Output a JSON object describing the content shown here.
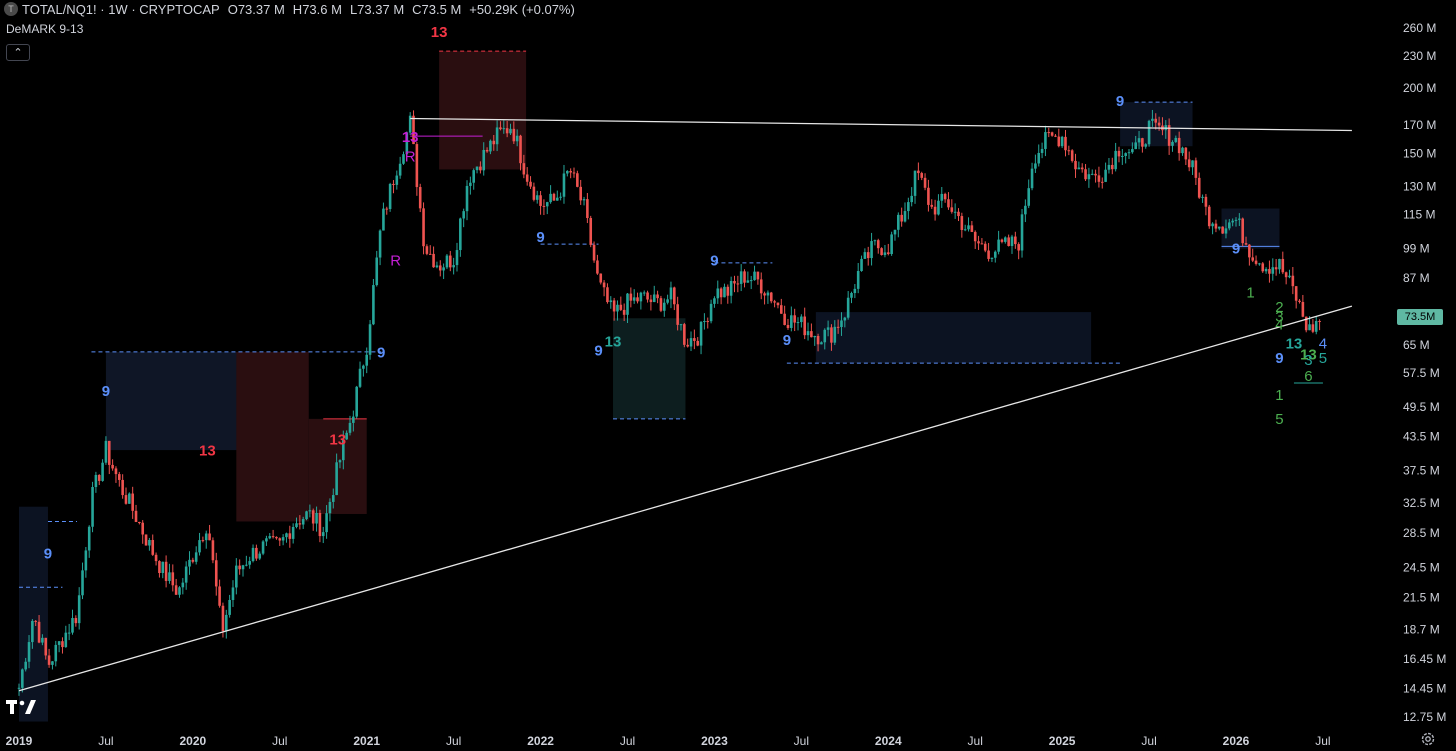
{
  "header": {
    "symbol_icon": "T",
    "title": "TOTAL/NQ1! · 1W · CRYPTOCAP",
    "ohlc": [
      {
        "key": "O",
        "value": "73.37 M"
      },
      {
        "key": "H",
        "value": "73.6 M"
      },
      {
        "key": "L",
        "value": "73.37 M"
      },
      {
        "key": "C",
        "value": "73.5 M"
      }
    ],
    "change": "+50.29K (+0.07%)"
  },
  "indicator": {
    "name": "DeMARK 9-13",
    "collapse_icon": "chevron-up-icon"
  },
  "price_label": "73.5M",
  "colors": {
    "up": "#26a69a",
    "down": "#ef5350",
    "trendline": "#e6e6e6",
    "tag": "#5fb8a3"
  },
  "chart_data": {
    "type": "candlestick",
    "scale": "log",
    "x": [
      "2019",
      "Jul",
      "2020",
      "Jul",
      "2021",
      "Jul",
      "2022",
      "Jul",
      "2023",
      "Jul",
      "2024",
      "Jul",
      "2025",
      "Jul",
      "2026",
      "Jul"
    ],
    "y_ticks": [
      "260 M",
      "230 M",
      "200 M",
      "170 M",
      "150 M",
      "130 M",
      "115 M",
      "99 M",
      "87 M",
      "73.5M",
      "65 M",
      "57.5 M",
      "49.5 M",
      "43.5 M",
      "37.5 M",
      "32.5 M",
      "28.5 M",
      "24.5 M",
      "21.5 M",
      "18.7 M",
      "16.45 M",
      "14.45 M",
      "12.75 M"
    ],
    "price_path": [
      [
        "2019-01",
        14.5
      ],
      [
        "2019-02",
        20
      ],
      [
        "2019-03",
        16
      ],
      [
        "2019-04",
        18
      ],
      [
        "2019-05",
        20
      ],
      [
        "2019-06",
        33
      ],
      [
        "2019-07",
        41
      ],
      [
        "2019-08",
        35
      ],
      [
        "2019-09",
        31
      ],
      [
        "2019-10",
        27
      ],
      [
        "2019-11",
        24
      ],
      [
        "2019-12",
        22
      ],
      [
        "2020-01",
        26
      ],
      [
        "2020-02",
        30
      ],
      [
        "2020-03",
        18.5
      ],
      [
        "2020-04",
        24
      ],
      [
        "2020-05",
        26
      ],
      [
        "2020-06",
        27
      ],
      [
        "2020-07",
        27
      ],
      [
        "2020-08",
        30
      ],
      [
        "2020-09",
        31
      ],
      [
        "2020-10",
        29
      ],
      [
        "2020-11",
        38
      ],
      [
        "2020-12",
        48
      ],
      [
        "2021-01",
        65
      ],
      [
        "2021-02",
        110
      ],
      [
        "2021-03",
        140
      ],
      [
        "2021-04",
        172
      ],
      [
        "2021-05",
        100
      ],
      [
        "2021-06",
        92
      ],
      [
        "2021-07",
        95
      ],
      [
        "2021-08",
        135
      ],
      [
        "2021-09",
        148
      ],
      [
        "2021-10",
        162
      ],
      [
        "2021-11",
        170
      ],
      [
        "2021-12",
        138
      ],
      [
        "2022-01",
        120
      ],
      [
        "2022-02",
        122
      ],
      [
        "2022-03",
        140
      ],
      [
        "2022-04",
        118
      ],
      [
        "2022-05",
        85
      ],
      [
        "2022-06",
        74
      ],
      [
        "2022-07",
        78
      ],
      [
        "2022-08",
        80
      ],
      [
        "2022-09",
        78
      ],
      [
        "2022-10",
        80
      ],
      [
        "2022-11",
        66
      ],
      [
        "2022-12",
        68
      ],
      [
        "2023-01",
        82
      ],
      [
        "2023-02",
        82
      ],
      [
        "2023-03",
        88
      ],
      [
        "2023-04",
        86
      ],
      [
        "2023-05",
        80
      ],
      [
        "2023-06",
        73
      ],
      [
        "2023-07",
        71
      ],
      [
        "2023-08",
        68
      ],
      [
        "2023-09",
        68
      ],
      [
        "2023-10",
        75
      ],
      [
        "2023-11",
        90
      ],
      [
        "2023-12",
        100
      ],
      [
        "2024-01",
        100
      ],
      [
        "2024-02",
        115
      ],
      [
        "2024-03",
        138
      ],
      [
        "2024-04",
        118
      ],
      [
        "2024-05",
        122
      ],
      [
        "2024-06",
        112
      ],
      [
        "2024-07",
        102
      ],
      [
        "2024-08",
        98
      ],
      [
        "2024-09",
        100
      ],
      [
        "2024-10",
        102
      ],
      [
        "2024-11",
        148
      ],
      [
        "2024-12",
        160
      ],
      [
        "2025-01",
        162
      ],
      [
        "2025-02",
        142
      ],
      [
        "2025-03",
        135
      ],
      [
        "2025-04",
        140
      ],
      [
        "2025-05",
        155
      ],
      [
        "2025-06",
        150
      ],
      [
        "2025-07",
        168
      ],
      [
        "2025-08",
        165
      ],
      [
        "2025-09",
        158
      ],
      [
        "2025-10",
        140
      ],
      [
        "2025-11",
        115
      ],
      [
        "2025-12",
        110
      ],
      [
        "2026-01",
        112
      ],
      [
        "2026-02",
        98
      ],
      [
        "2026-03",
        92
      ],
      [
        "2026-04",
        92
      ],
      [
        "2026-05",
        82
      ],
      [
        "2026-06",
        69
      ],
      [
        "2026-07",
        73.5
      ]
    ],
    "trendlines": [
      {
        "from": [
          "2019-01",
          14.3
        ],
        "to": [
          "2026-09",
          77
        ]
      },
      {
        "from": [
          "2021-04",
          175
        ],
        "to": [
          "2026-09",
          166
        ]
      }
    ],
    "annotations": [
      {
        "text": "13",
        "date": "2021-06",
        "price": 250,
        "color": "#f23645",
        "bold": true
      },
      {
        "text": "13",
        "date": "2021-04",
        "price": 158,
        "color": "#c41fd4",
        "bold": true
      },
      {
        "text": "R",
        "date": "2021-04",
        "price": 145,
        "color": "#c41fd4",
        "bold": false
      },
      {
        "text": "R",
        "date": "2021-03",
        "price": 92,
        "color": "#c41fd4",
        "bold": false
      },
      {
        "text": "13",
        "date": "2020-02",
        "price": 40,
        "color": "#f23645",
        "bold": true
      },
      {
        "text": "13",
        "date": "2020-11",
        "price": 42,
        "color": "#f23645",
        "bold": true
      },
      {
        "text": "9",
        "date": "2019-07",
        "price": 52,
        "color": "#5b8ff9",
        "bold": true
      },
      {
        "text": "9",
        "date": "2019-03",
        "price": 25.5,
        "color": "#5b8ff9",
        "bold": true
      },
      {
        "text": "9",
        "date": "2021-02",
        "price": 61.5,
        "color": "#5b8ff9",
        "bold": true
      },
      {
        "text": "9",
        "date": "2022-01",
        "price": 102,
        "color": "#5b8ff9",
        "bold": true
      },
      {
        "text": "9",
        "date": "2022-05",
        "price": 62,
        "color": "#5b8ff9",
        "bold": true
      },
      {
        "text": "13",
        "date": "2022-06",
        "price": 64.5,
        "color": "#26a69a",
        "bold": true
      },
      {
        "text": "9",
        "date": "2023-01",
        "price": 92,
        "color": "#5b8ff9",
        "bold": true
      },
      {
        "text": "9",
        "date": "2023-06",
        "price": 65,
        "color": "#5b8ff9",
        "bold": true
      },
      {
        "text": "9",
        "date": "2025-05",
        "price": 185,
        "color": "#5b8ff9",
        "bold": true
      },
      {
        "text": "9",
        "date": "2026-01",
        "price": 97,
        "color": "#5b8ff9",
        "bold": true
      },
      {
        "text": "1",
        "date": "2026-02",
        "price": 80,
        "color": "#4caf50",
        "bold": false
      },
      {
        "text": "2",
        "date": "2026-04",
        "price": 75,
        "color": "#4caf50",
        "bold": false
      },
      {
        "text": "3",
        "date": "2026-04",
        "price": 72,
        "color": "#4caf50",
        "bold": false
      },
      {
        "text": "4",
        "date": "2026-04",
        "price": 69.5,
        "color": "#4caf50",
        "bold": false
      },
      {
        "text": "13",
        "date": "2026-05",
        "price": 64,
        "color": "#26a69a",
        "bold": true
      },
      {
        "text": "13",
        "date": "2026-06",
        "price": 61,
        "color": "#4caf50",
        "bold": true
      },
      {
        "text": "9",
        "date": "2026-04",
        "price": 60,
        "color": "#5b8ff9",
        "bold": true
      },
      {
        "text": "3",
        "date": "2026-06",
        "price": 59.5,
        "color": "#26a69a",
        "bold": false
      },
      {
        "text": "4",
        "date": "2026-07",
        "price": 64,
        "color": "#5b8ff9",
        "bold": false
      },
      {
        "text": "5",
        "date": "2026-07",
        "price": 60,
        "color": "#26a69a",
        "bold": false
      },
      {
        "text": "6",
        "date": "2026-06",
        "price": 55.5,
        "color": "#4caf50",
        "bold": false
      },
      {
        "text": "1",
        "date": "2026-04",
        "price": 51,
        "color": "#4caf50",
        "bold": false
      },
      {
        "text": "5",
        "date": "2026-04",
        "price": 46,
        "color": "#4caf50",
        "bold": false
      }
    ],
    "zones": [
      {
        "from": "2019-07",
        "to": "2020-06",
        "low": 41,
        "high": 63,
        "color": "#0f1626"
      },
      {
        "from": "2020-04",
        "to": "2020-09",
        "low": 30,
        "high": 63,
        "color": "#2a0e10"
      },
      {
        "from": "2020-09",
        "to": "2021-01",
        "low": 31,
        "high": 47,
        "color": "#2a0e10"
      },
      {
        "from": "2021-06",
        "to": "2021-12",
        "low": 140,
        "high": 235,
        "color": "#2a0e10"
      },
      {
        "from": "2022-06",
        "to": "2022-11",
        "low": 47,
        "high": 73,
        "color": "#0d1e1f"
      },
      {
        "from": "2023-08",
        "to": "2025-03",
        "low": 60,
        "high": 75,
        "color": "#0c1322"
      },
      {
        "from": "2025-05",
        "to": "2025-10",
        "low": 155,
        "high": 188,
        "color": "#0c1322"
      },
      {
        "from": "2025-12",
        "to": "2026-04",
        "low": 99,
        "high": 118,
        "color": "#0c1322"
      },
      {
        "from": "2019-01",
        "to": "2019-03",
        "low": 12.5,
        "high": 32,
        "color": "#0c1322"
      }
    ],
    "levels": [
      {
        "from": "2019-06",
        "to": "2021-02",
        "price": 63,
        "color": "#5b8ff9",
        "dashed": true
      },
      {
        "from": "2021-06",
        "to": "2021-12",
        "price": 235,
        "color": "#f23645",
        "dashed": true
      },
      {
        "from": "2020-10",
        "to": "2021-01",
        "price": 47,
        "color": "#f23645",
        "dashed": false
      },
      {
        "from": "2021-04",
        "to": "2021-09",
        "price": 162,
        "color": "#c41fd4",
        "dashed": false
      },
      {
        "from": "2022-01",
        "to": "2022-05",
        "price": 101,
        "color": "#5b8ff9",
        "dashed": true
      },
      {
        "from": "2022-06",
        "to": "2022-11",
        "price": 47,
        "color": "#5b8ff9",
        "dashed": true
      },
      {
        "from": "2023-01",
        "to": "2023-05",
        "price": 93,
        "color": "#5b8ff9",
        "dashed": true
      },
      {
        "from": "2023-06",
        "to": "2025-05",
        "price": 60,
        "color": "#5b8ff9",
        "dashed": true
      },
      {
        "from": "2025-06",
        "to": "2025-10",
        "price": 188,
        "color": "#5b8ff9",
        "dashed": true
      },
      {
        "from": "2025-12",
        "to": "2026-04",
        "price": 100,
        "color": "#5b8ff9",
        "dashed": false
      },
      {
        "from": "2019-01",
        "to": "2019-04",
        "price": 22.5,
        "color": "#5b8ff9",
        "dashed": true
      },
      {
        "from": "2019-03",
        "to": "2019-05",
        "price": 30,
        "color": "#5b8ff9",
        "dashed": true
      },
      {
        "from": "2026-05",
        "to": "2026-07",
        "price": 55,
        "color": "#26a69a",
        "dashed": false
      }
    ]
  }
}
